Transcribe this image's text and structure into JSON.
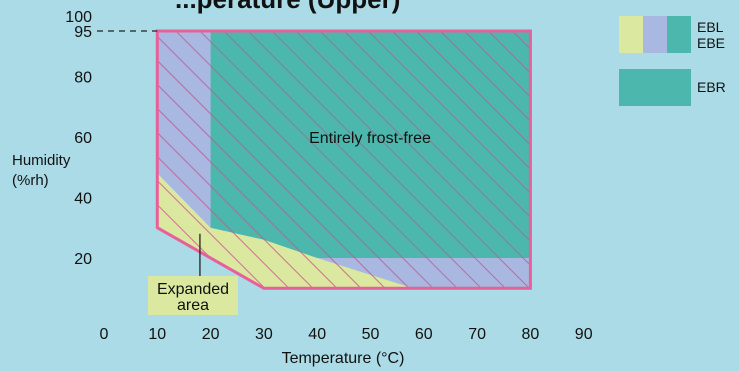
{
  "chart_data": {
    "type": "area",
    "title_fragment": "...perature (Upper)",
    "xlabel": "Temperature (°C)",
    "ylabel_line1": "Humidity",
    "ylabel_line2": "(%rh)",
    "xlim": [
      0,
      90
    ],
    "ylim": [
      10,
      100
    ],
    "x_ticks": [
      0,
      10,
      20,
      30,
      40,
      50,
      60,
      70,
      80,
      90
    ],
    "y_ticks": [
      20,
      40,
      60,
      80,
      95,
      100
    ],
    "colors": {
      "background": "#aadbe6",
      "yellow": "#dbe8a0",
      "lavender": "#a8b8e0",
      "teal": "#4cb8ad",
      "boundary": "#e8609a",
      "hatch": "#d24f8c",
      "label_box": "#dbe8a0"
    },
    "regions": [
      {
        "name": "yellow-region",
        "color_key": "yellow",
        "points": [
          [
            10,
            30
          ],
          [
            10,
            48
          ],
          [
            20,
            30
          ]
        ]
      },
      {
        "name": "lower-yellow-band",
        "color_key": "yellow",
        "points": [
          [
            10,
            30
          ],
          [
            20,
            30
          ],
          [
            30,
            26
          ],
          [
            58,
            10
          ],
          [
            30,
            10
          ]
        ]
      },
      {
        "name": "lavender-region",
        "color_key": "lavender",
        "points": [
          [
            10,
            95
          ],
          [
            20,
            95
          ],
          [
            20,
            30
          ],
          [
            10,
            48
          ]
        ]
      },
      {
        "name": "lavender-right-band",
        "color_key": "lavender",
        "points": [
          [
            58,
            10
          ],
          [
            80,
            10
          ],
          [
            80,
            20
          ],
          [
            40,
            20
          ]
        ]
      },
      {
        "name": "teal-region",
        "color_key": "teal",
        "points": [
          [
            20,
            95
          ],
          [
            80,
            95
          ],
          [
            80,
            20
          ],
          [
            40,
            20
          ],
          [
            30,
            26
          ],
          [
            20,
            30
          ]
        ]
      }
    ],
    "boundary": [
      [
        10,
        95
      ],
      [
        80,
        95
      ],
      [
        80,
        10
      ],
      [
        30,
        10
      ],
      [
        10,
        30
      ]
    ],
    "dashed_guide_y": 95,
    "annotations": {
      "center_label": "Entirely frost-free",
      "expanded_line1": "Expanded",
      "expanded_line2": "area",
      "expanded_pointer_from": [
        18,
        28
      ]
    },
    "legend": [
      {
        "colors": [
          "yellow",
          "lavender",
          "teal"
        ],
        "labels": [
          "EBL",
          "EBE"
        ]
      },
      {
        "colors": [
          "teal"
        ],
        "labels": [
          "EBR"
        ]
      }
    ]
  }
}
